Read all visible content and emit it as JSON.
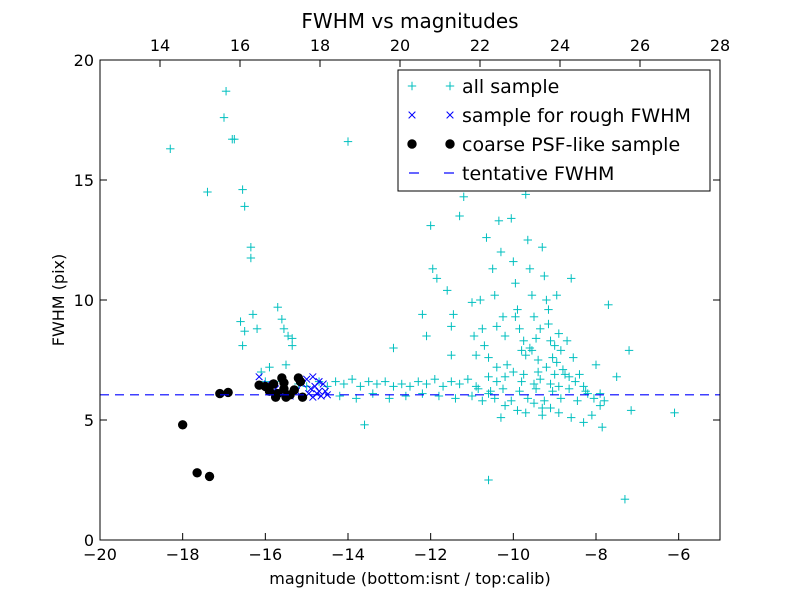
{
  "chart_data": {
    "type": "scatter",
    "title": "FWHM vs magnitudes",
    "xlabel": "magnitude (bottom:isnt / top:calib)",
    "ylabel": "FWHM (pix)",
    "xlim": [
      -20,
      -5
    ],
    "ylim": [
      0,
      20
    ],
    "top_xlim": [
      12.5,
      28
    ],
    "x_ticks": [
      "−20",
      "−18",
      "−16",
      "−14",
      "−12",
      "−10",
      "−8",
      "−6"
    ],
    "x_tick_values": [
      -20,
      -18,
      -16,
      -14,
      -12,
      -10,
      -8,
      -6
    ],
    "y_ticks": [
      "0",
      "5",
      "10",
      "15",
      "20"
    ],
    "y_tick_values": [
      0,
      5,
      10,
      15,
      20
    ],
    "top_x_ticks": [
      "14",
      "16",
      "18",
      "20",
      "22",
      "24",
      "26",
      "28"
    ],
    "top_x_tick_values": [
      14,
      16,
      18,
      20,
      22,
      24,
      26,
      28
    ],
    "legend_position": "upper-right",
    "tentative_fwhm": 6.05,
    "series": [
      {
        "name": "all sample",
        "marker": "plus",
        "color": "#00bfbf",
        "points": [
          [
            -18.3,
            16.3
          ],
          [
            -17.4,
            14.5
          ],
          [
            -17.0,
            17.6
          ],
          [
            -16.95,
            18.7
          ],
          [
            -16.8,
            16.7
          ],
          [
            -16.75,
            16.7
          ],
          [
            -16.55,
            14.6
          ],
          [
            -16.5,
            13.9
          ],
          [
            -16.35,
            12.2
          ],
          [
            -16.35,
            11.75
          ],
          [
            -16.6,
            9.1
          ],
          [
            -16.5,
            8.7
          ],
          [
            -16.55,
            8.1
          ],
          [
            -16.3,
            9.4
          ],
          [
            -16.2,
            8.8
          ],
          [
            -16.1,
            7.0
          ],
          [
            -15.9,
            7.2
          ],
          [
            -15.7,
            9.7
          ],
          [
            -15.6,
            9.2
          ],
          [
            -15.55,
            8.8
          ],
          [
            -15.45,
            8.5
          ],
          [
            -15.35,
            8.1
          ],
          [
            -15.35,
            8.4
          ],
          [
            -15.5,
            7.3
          ],
          [
            -15.6,
            6.6
          ],
          [
            -16.0,
            6.6
          ],
          [
            -15.2,
            6.5
          ],
          [
            -15.0,
            6.4
          ],
          [
            -14.7,
            6.6
          ],
          [
            -14.5,
            6.4
          ],
          [
            -14.3,
            6.6
          ],
          [
            -14.1,
            6.5
          ],
          [
            -13.9,
            6.7
          ],
          [
            -13.7,
            6.4
          ],
          [
            -13.5,
            6.6
          ],
          [
            -13.3,
            6.5
          ],
          [
            -13.1,
            6.6
          ],
          [
            -12.9,
            6.4
          ],
          [
            -12.7,
            6.5
          ],
          [
            -12.5,
            6.4
          ],
          [
            -12.3,
            6.6
          ],
          [
            -12.1,
            6.5
          ],
          [
            -11.9,
            6.7
          ],
          [
            -11.7,
            6.4
          ],
          [
            -11.5,
            6.6
          ],
          [
            -11.3,
            6.5
          ],
          [
            -11.1,
            6.7
          ],
          [
            -10.9,
            6.4
          ],
          [
            -14.2,
            6.0
          ],
          [
            -13.8,
            5.9
          ],
          [
            -13.4,
            6.1
          ],
          [
            -13.0,
            5.9
          ],
          [
            -12.6,
            6.0
          ],
          [
            -12.2,
            6.1
          ],
          [
            -11.8,
            6.0
          ],
          [
            -11.4,
            5.9
          ],
          [
            -11.0,
            6.0
          ],
          [
            -10.6,
            6.1
          ],
          [
            -14.0,
            16.6
          ],
          [
            -13.6,
            4.8
          ],
          [
            -12.9,
            8.0
          ],
          [
            -12.1,
            8.5
          ],
          [
            -12.0,
            13.1
          ],
          [
            -12.2,
            9.4
          ],
          [
            -11.95,
            11.3
          ],
          [
            -11.85,
            10.9
          ],
          [
            -11.6,
            10.4
          ],
          [
            -11.45,
            9.4
          ],
          [
            -11.5,
            8.9
          ],
          [
            -11.5,
            7.7
          ],
          [
            -11.3,
            13.5
          ],
          [
            -11.2,
            14.3
          ],
          [
            -11.0,
            9.9
          ],
          [
            -10.95,
            8.5
          ],
          [
            -10.9,
            7.7
          ],
          [
            -10.8,
            10.0
          ],
          [
            -10.75,
            8.8
          ],
          [
            -10.7,
            8.1
          ],
          [
            -10.65,
            12.6
          ],
          [
            -10.6,
            7.6
          ],
          [
            -10.5,
            11.3
          ],
          [
            -10.45,
            10.2
          ],
          [
            -10.4,
            8.9
          ],
          [
            -10.4,
            7.2
          ],
          [
            -10.35,
            13.3
          ],
          [
            -10.3,
            12.0
          ],
          [
            -10.25,
            9.3
          ],
          [
            -10.2,
            8.5
          ],
          [
            -10.15,
            7.3
          ],
          [
            -10.1,
            14.9
          ],
          [
            -10.05,
            13.4
          ],
          [
            -10.0,
            11.6
          ],
          [
            -9.95,
            10.7
          ],
          [
            -9.9,
            9.6
          ],
          [
            -9.85,
            8.8
          ],
          [
            -9.8,
            7.9
          ],
          [
            -9.75,
            6.9
          ],
          [
            -9.7,
            14.4
          ],
          [
            -9.65,
            12.5
          ],
          [
            -9.6,
            11.3
          ],
          [
            -9.55,
            10.2
          ],
          [
            -9.5,
            9.3
          ],
          [
            -9.45,
            8.4
          ],
          [
            -9.4,
            7.5
          ],
          [
            -9.35,
            6.7
          ],
          [
            -9.3,
            12.2
          ],
          [
            -9.25,
            11.0
          ],
          [
            -9.2,
            10.0
          ],
          [
            -9.15,
            9.0
          ],
          [
            -9.1,
            8.3
          ],
          [
            -9.05,
            7.6
          ],
          [
            -9.0,
            6.9
          ],
          [
            -8.95,
            10.2
          ],
          [
            -8.9,
            8.6
          ],
          [
            -8.85,
            7.9
          ],
          [
            -8.8,
            7.1
          ],
          [
            -8.7,
            8.3
          ],
          [
            -8.65,
            6.8
          ],
          [
            -8.6,
            10.9
          ],
          [
            -8.55,
            7.6
          ],
          [
            -8.5,
            6.6
          ],
          [
            -8.4,
            6.9
          ],
          [
            -8.3,
            6.4
          ],
          [
            -8.2,
            6.1
          ],
          [
            -10.6,
            2.5
          ],
          [
            -10.3,
            5.1
          ],
          [
            -10.2,
            5.6
          ],
          [
            -9.9,
            5.4
          ],
          [
            -9.7,
            5.3
          ],
          [
            -9.5,
            5.7
          ],
          [
            -9.3,
            5.2
          ],
          [
            -9.1,
            5.5
          ],
          [
            -8.9,
            5.3
          ],
          [
            -8.6,
            5.1
          ],
          [
            -8.3,
            4.9
          ],
          [
            -8.1,
            5.2
          ],
          [
            -7.9,
            5.6
          ],
          [
            -8.0,
            7.3
          ],
          [
            -7.85,
            4.7
          ],
          [
            -7.7,
            9.8
          ],
          [
            -7.5,
            6.8
          ],
          [
            -7.3,
            1.7
          ],
          [
            -7.2,
            7.9
          ],
          [
            -7.15,
            5.4
          ],
          [
            -6.1,
            5.3
          ],
          [
            -10.85,
            6.3
          ],
          [
            -10.75,
            5.8
          ],
          [
            -10.55,
            6.2
          ],
          [
            -10.45,
            5.9
          ],
          [
            -10.25,
            6.3
          ],
          [
            -10.05,
            5.8
          ],
          [
            -9.85,
            6.2
          ],
          [
            -9.65,
            5.9
          ],
          [
            -9.45,
            6.3
          ],
          [
            -9.25,
            5.8
          ],
          [
            -9.05,
            6.2
          ],
          [
            -8.85,
            5.9
          ],
          [
            -8.65,
            6.3
          ],
          [
            -8.45,
            5.8
          ],
          [
            -8.25,
            6.2
          ],
          [
            -8.05,
            5.9
          ],
          [
            -7.9,
            6.1
          ],
          [
            -7.8,
            5.8
          ],
          [
            -9.6,
            8.0
          ],
          [
            -9.4,
            7.0
          ],
          [
            -9.2,
            7.2
          ],
          [
            -9.0,
            8.1
          ],
          [
            -9.7,
            7.7
          ],
          [
            -9.5,
            6.5
          ],
          [
            -9.8,
            6.6
          ],
          [
            -10.0,
            7.0
          ],
          [
            -10.2,
            6.8
          ],
          [
            -10.4,
            6.6
          ],
          [
            -10.6,
            6.8
          ],
          [
            -9.3,
            5.5
          ],
          [
            -9.1,
            6.5
          ],
          [
            -8.9,
            6.4
          ],
          [
            -8.75,
            6.9
          ],
          [
            -9.55,
            7.9
          ],
          [
            -9.35,
            8.8
          ],
          [
            -9.15,
            9.6
          ],
          [
            -8.95,
            7.4
          ],
          [
            -9.75,
            8.3
          ],
          [
            -9.95,
            9.3
          ]
        ]
      },
      {
        "name": "sample for rough FWHM",
        "marker": "x",
        "color": "#0000ff",
        "points": [
          [
            -16.15,
            6.8
          ],
          [
            -15.95,
            6.5
          ],
          [
            -15.75,
            6.3
          ],
          [
            -15.6,
            6.1
          ],
          [
            -15.4,
            6.0
          ],
          [
            -15.25,
            6.2
          ],
          [
            -15.1,
            6.5
          ],
          [
            -15.0,
            6.7
          ],
          [
            -14.95,
            6.1
          ],
          [
            -14.9,
            6.3
          ],
          [
            -14.85,
            5.95
          ],
          [
            -14.8,
            6.4
          ],
          [
            -14.75,
            6.1
          ],
          [
            -14.7,
            6.2
          ],
          [
            -14.65,
            6.0
          ],
          [
            -14.6,
            6.5
          ],
          [
            -14.55,
            6.2
          ],
          [
            -14.5,
            6.05
          ],
          [
            -14.85,
            6.8
          ],
          [
            -14.7,
            6.6
          ]
        ]
      },
      {
        "name": "coarse PSF-like sample",
        "marker": "dot",
        "color": "#000000",
        "points": [
          [
            -18.0,
            4.8
          ],
          [
            -17.65,
            2.8
          ],
          [
            -17.35,
            2.65
          ],
          [
            -17.1,
            6.1
          ],
          [
            -16.9,
            6.15
          ],
          [
            -16.15,
            6.45
          ],
          [
            -16.0,
            6.4
          ],
          [
            -15.9,
            6.2
          ],
          [
            -15.8,
            6.5
          ],
          [
            -15.75,
            5.95
          ],
          [
            -15.7,
            6.1
          ],
          [
            -15.6,
            6.75
          ],
          [
            -15.55,
            6.3
          ],
          [
            -15.5,
            5.95
          ],
          [
            -15.4,
            6.05
          ],
          [
            -15.3,
            6.25
          ],
          [
            -15.2,
            6.75
          ],
          [
            -15.15,
            6.6
          ],
          [
            -15.1,
            5.95
          ],
          [
            -15.55,
            6.55
          ]
        ]
      }
    ],
    "legend": [
      {
        "label": "all sample",
        "marker": "plus",
        "color": "#00bfbf"
      },
      {
        "label": "sample for rough FWHM",
        "marker": "x",
        "color": "#0000ff"
      },
      {
        "label": "coarse PSF-like sample",
        "marker": "dot",
        "color": "#000000"
      },
      {
        "label": "tentative FWHM",
        "marker": "dash",
        "color": "#0000ff"
      }
    ]
  }
}
